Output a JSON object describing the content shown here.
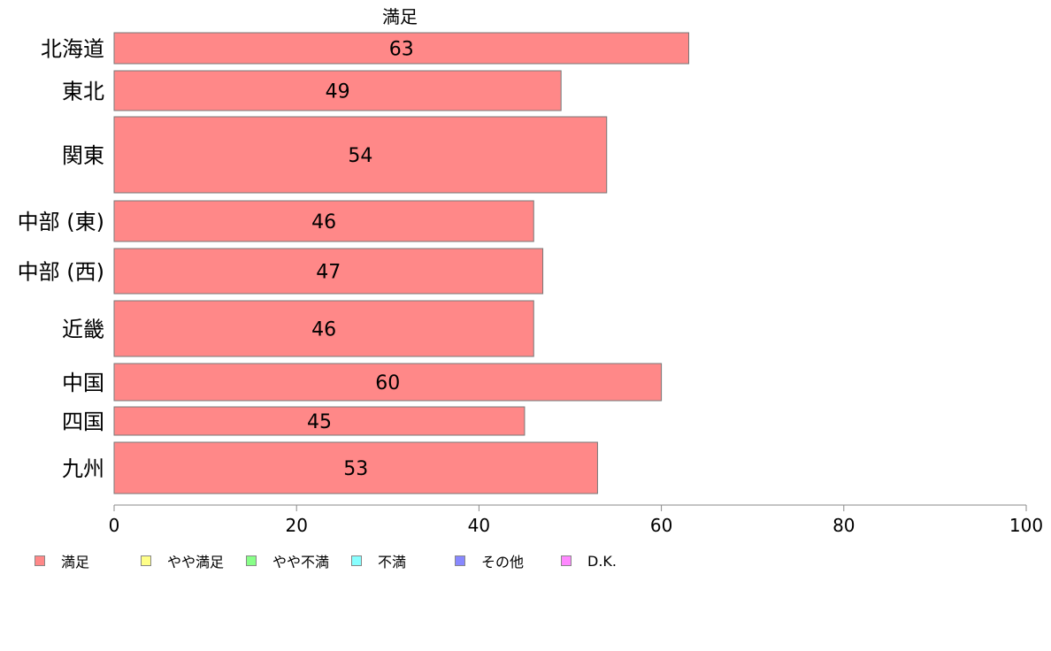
{
  "chart_data": {
    "type": "bar",
    "orientation": "horizontal",
    "title": "満足",
    "categories": [
      "北海道",
      "東北",
      "関東",
      "中部 (東)",
      "中部 (西)",
      "近畿",
      "中国",
      "四国",
      "九州"
    ],
    "values": [
      63,
      49,
      54,
      46,
      47,
      46,
      60,
      45,
      53
    ],
    "data_labels": [
      "63",
      "49",
      "54",
      "46",
      "47",
      "46",
      "60",
      "45",
      "53"
    ],
    "xlim": [
      0,
      100
    ],
    "x_ticks": [
      "0",
      "20",
      "40",
      "60",
      "80",
      "100"
    ],
    "grid": false,
    "bar_color": "#ff8888",
    "legend_position": "bottom",
    "legend": [
      {
        "label": "満足",
        "color": "#ff8888"
      },
      {
        "label": "やや満足",
        "color": "#ffff88"
      },
      {
        "label": "やや不満",
        "color": "#88ff88"
      },
      {
        "label": "不満",
        "color": "#88ffff"
      },
      {
        "label": "その他",
        "color": "#8888ff"
      },
      {
        "label": "D.K.",
        "color": "#ff88ff"
      }
    ]
  }
}
